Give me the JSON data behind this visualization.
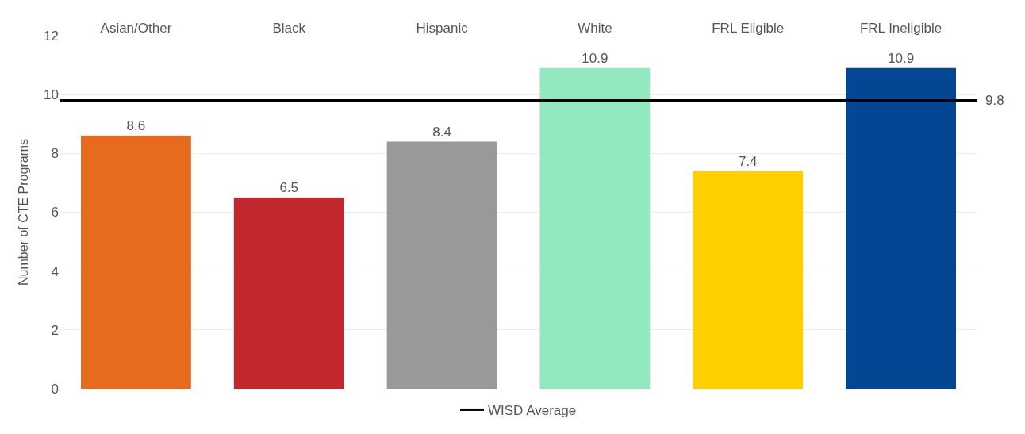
{
  "chart_data": {
    "type": "bar",
    "ylabel": "Number of CTE Programs",
    "categories": [
      "Asian/Other",
      "Black",
      "Hispanic",
      "White",
      "FRL Eligible",
      "FRL Ineligible"
    ],
    "values": [
      8.6,
      6.5,
      8.4,
      10.9,
      7.4,
      10.9
    ],
    "colors": [
      "#e86a1f",
      "#c1272d",
      "#999999",
      "#92e8bf",
      "#ffd000",
      "#034693"
    ],
    "data_labels": true,
    "ylim": [
      0,
      12
    ],
    "yticks": [
      0,
      2,
      4,
      6,
      8,
      10,
      12
    ],
    "grid": "y",
    "ref_lines": [
      {
        "axis": "y",
        "value": 9.8,
        "label": "WISD Average",
        "color": "#000000",
        "line_style": "solid"
      }
    ],
    "annotations": [
      "9.8"
    ],
    "legend": "bottom"
  }
}
